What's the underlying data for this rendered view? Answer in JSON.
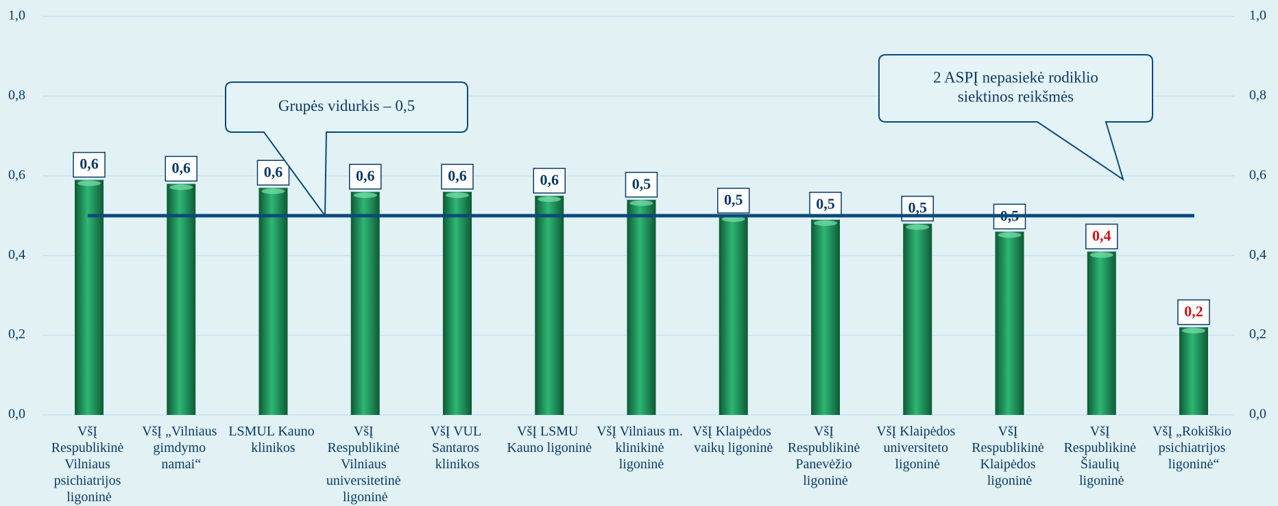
{
  "chart_data": {
    "type": "bar",
    "categories": [
      "VšĮ Respublikinė Vilniaus psichiatrijos ligoninė",
      "VšĮ „Vilniaus gimdymo namai“",
      "LSMUL Kauno klinikos",
      "VšĮ Respublikinė Vilniaus universitetinė ligoninė",
      "VšĮ VUL Santaros klinikos",
      "VšĮ LSMU Kauno ligoninė",
      "VšĮ Vilniaus m. klinikinė ligoninė",
      "VšĮ Klaipėdos vaikų ligoninė",
      "VšĮ Respublikinė Panevėžio ligoninė",
      "VšĮ Klaipėdos universiteto ligoninė",
      "VšĮ Respublikinė Klaipėdos ligoninė",
      "VšĮ Respublikinė Šiaulių ligoninė",
      "VšĮ „Rokiškio psichiatrijos ligoninė“"
    ],
    "values": [
      0.59,
      0.58,
      0.57,
      0.56,
      0.56,
      0.55,
      0.54,
      0.5,
      0.49,
      0.48,
      0.46,
      0.41,
      0.22
    ],
    "value_labels": [
      "0,6",
      "0,6",
      "0,6",
      "0,6",
      "0,6",
      "0,6",
      "0,5",
      "0,5",
      "0,5",
      "0,5",
      "0,5",
      "0,4",
      "0,2"
    ],
    "value_label_colors": [
      "#0b3a66",
      "#0b3a66",
      "#0b3a66",
      "#0b3a66",
      "#0b3a66",
      "#0b3a66",
      "#0b3a66",
      "#0b3a66",
      "#0b3a66",
      "#0b3a66",
      "#0b3a66",
      "#d0141a",
      "#d0141a"
    ],
    "color": "#1f9a5c",
    "ylim": [
      0,
      1
    ],
    "yticks": [
      {
        "value": 0,
        "label": "0,0"
      },
      {
        "value": 0.2,
        "label": "0,2"
      },
      {
        "value": 0.4,
        "label": "0,4"
      },
      {
        "value": 0.6,
        "label": "0,6"
      },
      {
        "value": 0.8,
        "label": "0,8"
      },
      {
        "value": 1,
        "label": "1,0"
      }
    ],
    "grid": true,
    "reference_line": 0.5,
    "annotations": [
      {
        "lines": [
          "Grupės vidurkis – 0,5"
        ]
      },
      {
        "lines": [
          "2 ASPĮ nepasiekė rodiklio",
          "siektinos reikšmės"
        ]
      }
    ]
  }
}
